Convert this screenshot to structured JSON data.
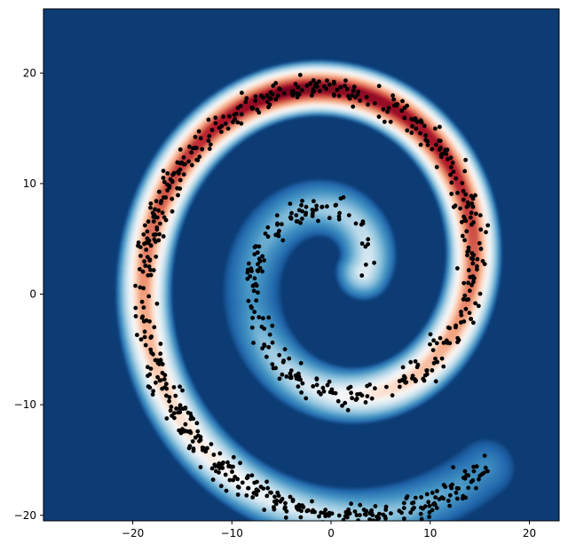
{
  "chart_data": {
    "type": "scatter",
    "subtype": "filled-contour with scatter overlay",
    "title": "",
    "xlabel": "",
    "ylabel": "",
    "xlim": [
      -29,
      23
    ],
    "ylim": [
      -20.5,
      25.8
    ],
    "xticks": [
      -20,
      -10,
      0,
      10,
      20
    ],
    "yticks": [
      -20,
      -10,
      0,
      10,
      20
    ],
    "xtick_labels": [
      "−20",
      "−10",
      "0",
      "10",
      "20"
    ],
    "ytick_labels": [
      "−20",
      "−10",
      "0",
      "10",
      "20"
    ],
    "grid": false,
    "legend": "none",
    "colormap": "RdBu_r",
    "background_color": "#0d3c75",
    "marker_color": "#000000",
    "spiral": {
      "center": [
        0.5,
        2
      ],
      "radius_start": 2.8,
      "radius_per_radian": 1.75,
      "theta_start": 0,
      "theta_end": 11.7,
      "density_peaks": [
        {
          "position": 0.1,
          "value": 0.36
        },
        {
          "position": 0.3,
          "value": 0.2
        },
        {
          "position": 0.45,
          "value": 0.6
        },
        {
          "position": 0.6,
          "value": 0.9
        },
        {
          "position": 0.7,
          "value": 0.98
        },
        {
          "position": 0.8,
          "value": 0.75
        },
        {
          "position": 0.9,
          "value": 0.5
        },
        {
          "position": 1.0,
          "value": 0.18
        }
      ],
      "band_width": 2.9,
      "point_count": 900,
      "point_spread": 1.5
    }
  }
}
